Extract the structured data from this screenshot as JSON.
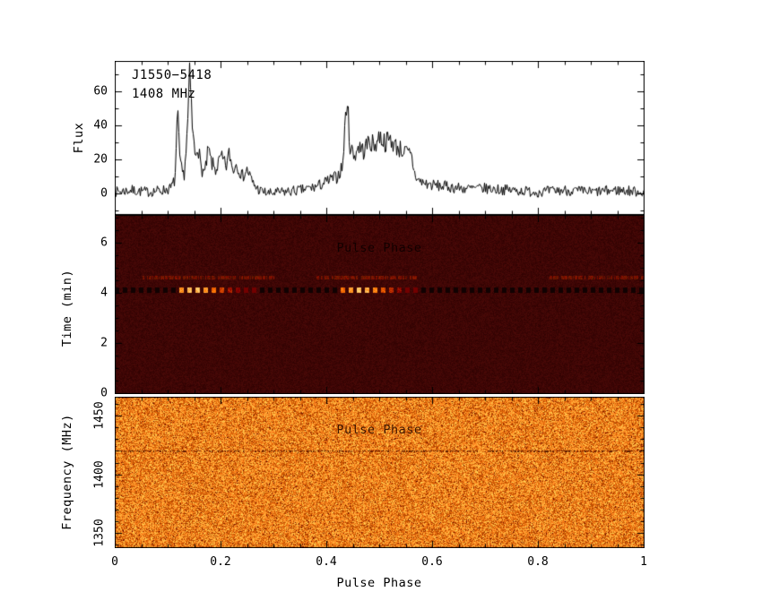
{
  "annotations": {
    "source": "J1550−5418",
    "frequency": "1408 MHz"
  },
  "chart_data": [
    {
      "type": "line",
      "panel": "pulse-profile",
      "xlabel": "Pulse Phase",
      "ylabel": "Flux",
      "xlim": [
        0,
        1
      ],
      "ylim": [
        -12,
        78
      ],
      "yticks": [
        0,
        20,
        40,
        60
      ],
      "ytick_labels": [
        "0",
        "20",
        "40",
        "60"
      ],
      "line_color": "#000000",
      "noise_amplitude": 3,
      "profile_anchors": [
        [
          0.0,
          1
        ],
        [
          0.03,
          2
        ],
        [
          0.06,
          1
        ],
        [
          0.09,
          2
        ],
        [
          0.105,
          3
        ],
        [
          0.113,
          8
        ],
        [
          0.118,
          46
        ],
        [
          0.123,
          16
        ],
        [
          0.13,
          10
        ],
        [
          0.136,
          34
        ],
        [
          0.141,
          70
        ],
        [
          0.146,
          38
        ],
        [
          0.151,
          22
        ],
        [
          0.156,
          30
        ],
        [
          0.162,
          15
        ],
        [
          0.17,
          12
        ],
        [
          0.176,
          26
        ],
        [
          0.182,
          18
        ],
        [
          0.19,
          14
        ],
        [
          0.2,
          21
        ],
        [
          0.21,
          16
        ],
        [
          0.216,
          24
        ],
        [
          0.222,
          14
        ],
        [
          0.23,
          18
        ],
        [
          0.24,
          10
        ],
        [
          0.25,
          14
        ],
        [
          0.26,
          6
        ],
        [
          0.272,
          2
        ],
        [
          0.29,
          0
        ],
        [
          0.32,
          1
        ],
        [
          0.35,
          2
        ],
        [
          0.38,
          4
        ],
        [
          0.4,
          7
        ],
        [
          0.42,
          10
        ],
        [
          0.43,
          16
        ],
        [
          0.438,
          57
        ],
        [
          0.444,
          28
        ],
        [
          0.452,
          22
        ],
        [
          0.46,
          28
        ],
        [
          0.47,
          25
        ],
        [
          0.48,
          31
        ],
        [
          0.49,
          28
        ],
        [
          0.5,
          34
        ],
        [
          0.51,
          30
        ],
        [
          0.52,
          32
        ],
        [
          0.53,
          28
        ],
        [
          0.54,
          26
        ],
        [
          0.55,
          24
        ],
        [
          0.56,
          22
        ],
        [
          0.566,
          12
        ],
        [
          0.572,
          8
        ],
        [
          0.585,
          6
        ],
        [
          0.6,
          5
        ],
        [
          0.63,
          4
        ],
        [
          0.66,
          3
        ],
        [
          0.7,
          3
        ],
        [
          0.75,
          2
        ],
        [
          0.8,
          1
        ],
        [
          0.85,
          2
        ],
        [
          0.9,
          1
        ],
        [
          0.95,
          2
        ],
        [
          1.0,
          1
        ]
      ]
    },
    {
      "type": "heatmap",
      "panel": "time-vs-phase",
      "xlabel": "Pulse Phase",
      "ylabel": "Time (min)",
      "xlim": [
        0,
        1
      ],
      "ylim": [
        0,
        7.1
      ],
      "yticks": [
        0,
        2,
        4,
        6
      ],
      "ytick_labels": [
        "0",
        "2",
        "4",
        "6"
      ],
      "colormap": "heat",
      "background_color": "#3a0404",
      "bright_row_time": 4.1,
      "bright_segments": [
        {
          "range": [
            0.115,
            0.27
          ],
          "peak": 0.15
        },
        {
          "range": [
            0.43,
            0.57
          ],
          "peak": 0.465
        }
      ],
      "faint_rows": [
        {
          "time": 4.6,
          "ranges": [
            [
              0.05,
              0.3
            ],
            [
              0.38,
              0.57
            ],
            [
              0.82,
              1.0
            ]
          ]
        }
      ]
    },
    {
      "type": "heatmap",
      "panel": "frequency-vs-phase",
      "xlabel": "Pulse Phase",
      "ylabel": "Frequency (MHz)",
      "xlim": [
        0,
        1
      ],
      "ylim": [
        1338,
        1466
      ],
      "yticks": [
        1350,
        1400,
        1450
      ],
      "ytick_labels": [
        "1350",
        "1400",
        "1450"
      ],
      "xticks": [
        0,
        0.2,
        0.4,
        0.6,
        0.8,
        1
      ],
      "xtick_labels": [
        "0",
        "0.2",
        "0.4",
        "0.6",
        "0.8",
        "1"
      ],
      "colormap": "heat",
      "dark_line_freq": 1420
    }
  ]
}
